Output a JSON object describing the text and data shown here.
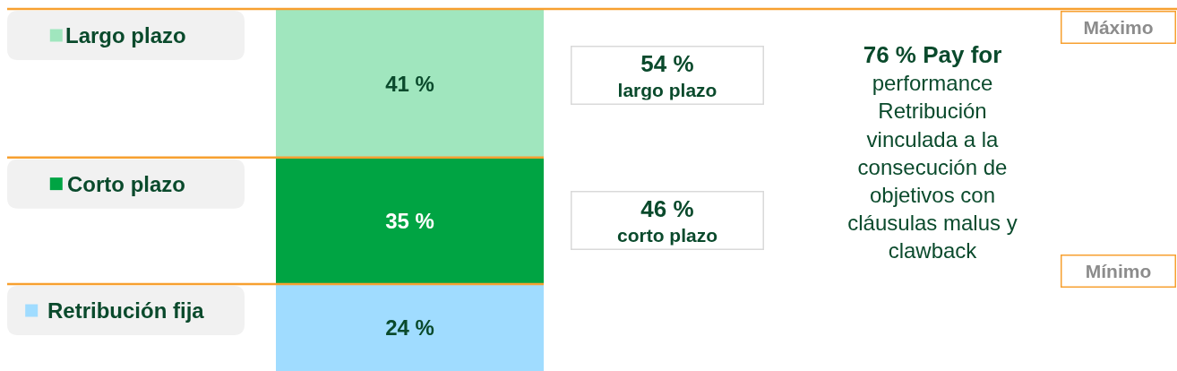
{
  "chart_data": {
    "type": "bar",
    "stacked": true,
    "categories": [
      null
    ],
    "series": [
      {
        "name": "Retribución fija",
        "color": "#a0dcff",
        "values": [
          24
        ],
        "value_labels": [
          "24 %"
        ]
      },
      {
        "name": "Corto plazo",
        "color": "#00a443",
        "values": [
          35
        ],
        "value_labels": [
          "35 %"
        ]
      },
      {
        "name": "Largo plazo",
        "color": "#a0e6be",
        "values": [
          41
        ],
        "value_labels": [
          "41 %"
        ]
      }
    ],
    "ref_lines": [
      {
        "axis": "y",
        "value": 100,
        "color": "#f7a030"
      },
      {
        "axis": "y",
        "value": 59,
        "color": "#f7a030"
      },
      {
        "axis": "y",
        "value": 24,
        "color": "#f7a030"
      }
    ],
    "annotations": [
      "54 %\nlargo plazo",
      "46 %\ncorto plazo",
      "76 % Pay for\nperformance\nRetribución\nvinculada a la\nconsecución de\nobjetivos con\ncláusulas malus y\nclawback",
      "Máximo",
      "Mínimo"
    ],
    "legend": "left"
  }
}
